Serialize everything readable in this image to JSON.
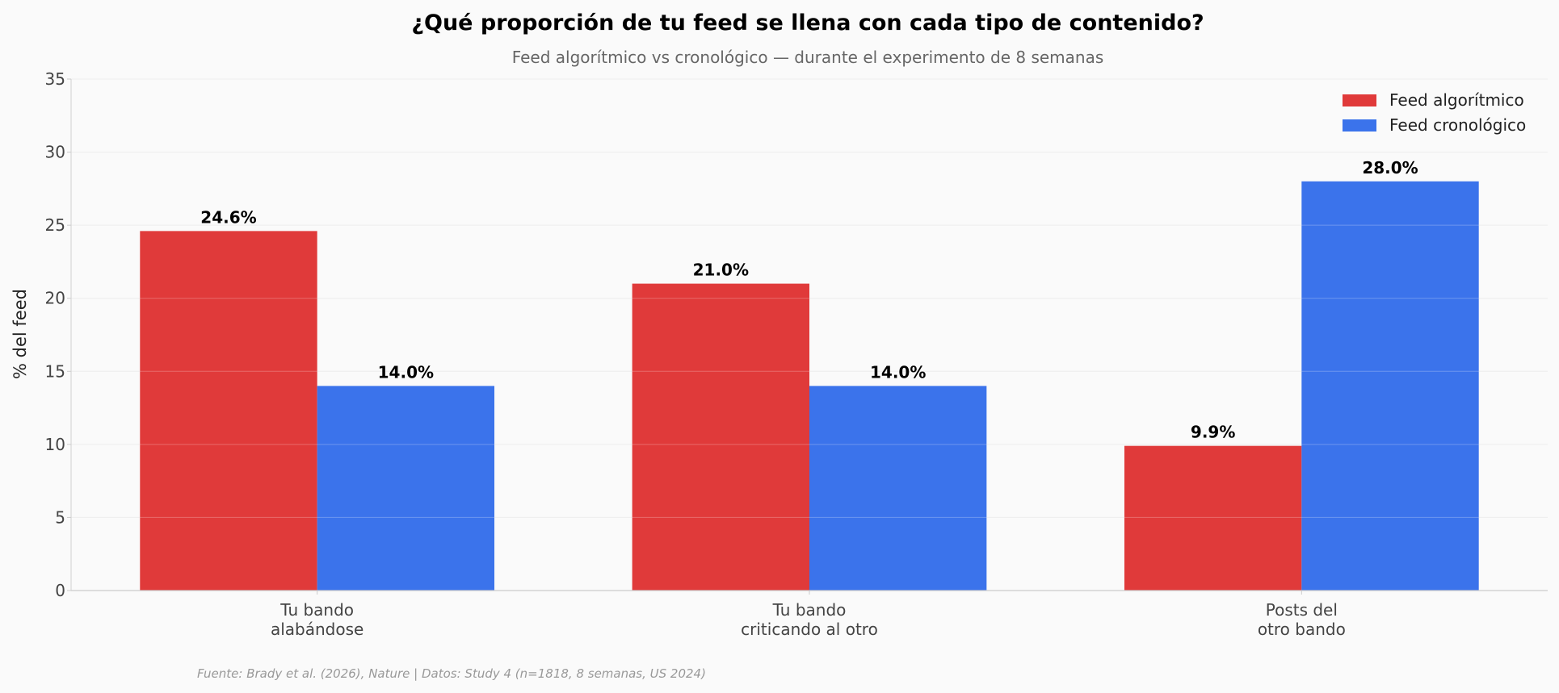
{
  "chart_data": {
    "type": "bar",
    "title": "¿Qué proporción de tu feed se llena con cada tipo de contenido?",
    "subtitle": "Feed algorítmico vs cronológico — durante el experimento de 8 semanas",
    "xlabel": "",
    "ylabel": "% del feed",
    "ylim": [
      0,
      35
    ],
    "yticks": [
      0,
      5,
      10,
      15,
      20,
      25,
      30,
      35
    ],
    "grid": true,
    "legend_position": "top-right",
    "categories": [
      [
        "Tu bando",
        "alabándose"
      ],
      [
        "Tu bando",
        "criticando al otro"
      ],
      [
        "Posts del",
        "otro bando"
      ]
    ],
    "series": [
      {
        "name": "Feed algorítmico",
        "color": "#e03a3a",
        "values": [
          24.6,
          21.0,
          9.9
        ],
        "labels": [
          "24.6%",
          "21.0%",
          "9.9%"
        ]
      },
      {
        "name": "Feed cronológico",
        "color": "#3b73eb",
        "values": [
          14.0,
          14.0,
          28.0
        ],
        "labels": [
          "14.0%",
          "14.0%",
          "28.0%"
        ]
      }
    ],
    "source": "Fuente: Brady et al. (2026), Nature | Datos: Study 4 (n=1818, 8 semanas, US 2024)"
  }
}
